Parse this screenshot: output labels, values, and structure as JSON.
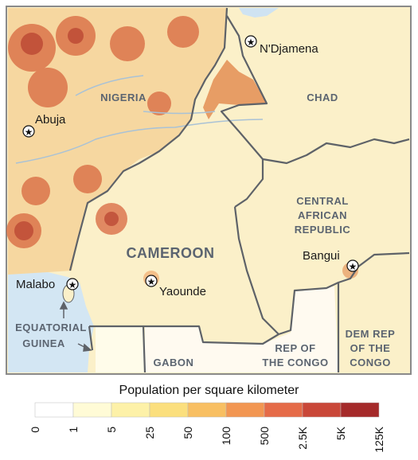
{
  "map": {
    "countries": {
      "nigeria": "NIGERIA",
      "chad": "CHAD",
      "car_line1": "CENTRAL",
      "car_line2": "AFRICAN",
      "car_line3": "REPUBLIC",
      "cameroon": "CAMEROON",
      "eq_guinea_line1": "EQUATORIAL",
      "eq_guinea_line2": "GUINEA",
      "gabon": "GABON",
      "congo_line1": "REP OF",
      "congo_line2": "THE CONGO",
      "drc_line1": "DEM REP",
      "drc_line2": "OF THE",
      "drc_line3": "CONGO"
    },
    "cities": {
      "ndjamena": "N'Djamena",
      "abuja": "Abuja",
      "bangui": "Bangui",
      "malabo": "Malabo",
      "yaounde": "Yaounde"
    }
  },
  "legend": {
    "title": "Population per square kilometer",
    "bins": [
      {
        "label": "0",
        "color": "#ffffff"
      },
      {
        "label": "1",
        "color": "#fffbd6"
      },
      {
        "label": "5",
        "color": "#fdf1a8"
      },
      {
        "label": "25",
        "color": "#fbdf7d"
      },
      {
        "label": "50",
        "color": "#f8bf62"
      },
      {
        "label": "100",
        "color": "#f29652"
      },
      {
        "label": "500",
        "color": "#e56b48"
      },
      {
        "label": "2.5K",
        "color": "#c94738"
      },
      {
        "label": "5K",
        "color": "#a52a2a"
      },
      {
        "label": "125K",
        "color": "#6e1212"
      }
    ]
  },
  "colors": {
    "land": "#fbf0c9",
    "water": "#d3e6f3",
    "border": "#5e6268",
    "dense": "#d8673f"
  }
}
